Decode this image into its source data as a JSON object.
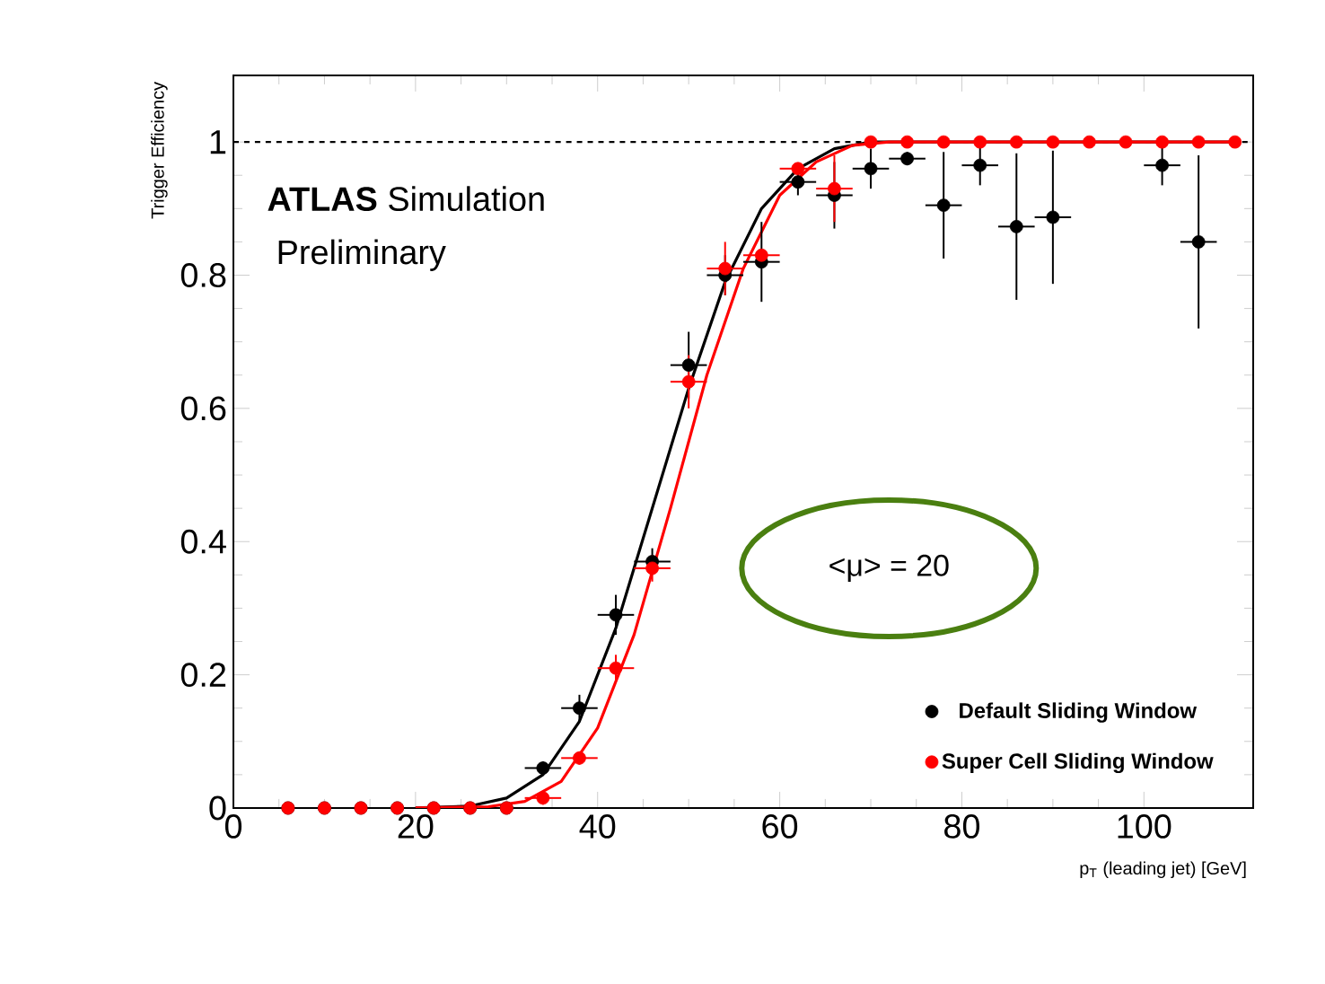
{
  "chart_data": {
    "type": "scatter",
    "xlabel": "p$_{T}$ (leading jet) [GeV]",
    "ylabel": "Trigger Efficiency",
    "annotations": [
      "**ATLAS** Simulation",
      "Preliminary",
      "<μ> = 20"
    ],
    "xlim": [
      0,
      112
    ],
    "ylim": [
      0,
      1.1
    ],
    "xticks": [
      0,
      20,
      40,
      60,
      80,
      100
    ],
    "yticks": [
      0,
      0.2,
      0.4,
      0.6,
      0.8,
      1
    ],
    "marker": "circle",
    "legend": "bottom right",
    "grid": false,
    "ref_lines": [
      {
        "axis": "y",
        "value": 1,
        "color": "#000000",
        "line_style": "dashed"
      }
    ],
    "series": [
      {
        "name": "Default Sliding Window",
        "color": "#000000",
        "x": [
          6,
          10,
          14,
          18,
          22,
          26,
          30,
          34,
          38,
          42,
          46,
          50,
          54,
          58,
          62,
          66,
          70,
          74,
          78,
          82,
          86,
          90,
          94,
          98,
          102,
          106
        ],
        "values": [
          0,
          0,
          0,
          0,
          0,
          0,
          0,
          0.06,
          0.15,
          0.29,
          0.37,
          0.665,
          0.8,
          0.82,
          0.94,
          0.92,
          0.96,
          0.975,
          0.905,
          0.965,
          0.873,
          0.887,
          null,
          null,
          0.965,
          0.85
        ],
        "errors": [
          null,
          null,
          null,
          null,
          null,
          null,
          null,
          0.01,
          0.02,
          0.03,
          0.02,
          0.05,
          0.03,
          0.06,
          0.02,
          0.05,
          0.03,
          0.01,
          0.08,
          0.03,
          0.11,
          0.1,
          null,
          null,
          0.03,
          0.13
        ],
        "xerrors": [
          null,
          null,
          null,
          null,
          null,
          null,
          null,
          2,
          2,
          2,
          2,
          2,
          2,
          2,
          2,
          2,
          2,
          2,
          2,
          2,
          2,
          2,
          null,
          null,
          2,
          2
        ]
      },
      {
        "name": "Super Cell Sliding Window",
        "color": "#ff0000",
        "x": [
          6,
          10,
          14,
          18,
          22,
          26,
          30,
          34,
          38,
          42,
          46,
          50,
          54,
          58,
          62,
          66,
          70,
          74,
          78,
          82,
          86,
          90,
          94,
          98,
          102,
          106,
          110
        ],
        "values": [
          0,
          0,
          0,
          0,
          0,
          0,
          0,
          0.015,
          0.075,
          0.21,
          0.36,
          0.64,
          0.81,
          0.83,
          0.96,
          0.93,
          1,
          1,
          1,
          1,
          1,
          1,
          1,
          1,
          1,
          1,
          1
        ],
        "errors": [
          null,
          null,
          null,
          null,
          null,
          null,
          null,
          0.01,
          0.01,
          0.02,
          0.02,
          0.04,
          0.04,
          null,
          null,
          0.05,
          null,
          null,
          null,
          null,
          null,
          null,
          null,
          null,
          null,
          null,
          null
        ],
        "xerrors": [
          null,
          null,
          null,
          null,
          null,
          null,
          null,
          2,
          2,
          2,
          2,
          2,
          2,
          2,
          2,
          2,
          null,
          null,
          null,
          null,
          null,
          null,
          null,
          null,
          null,
          null,
          null
        ]
      },
      {
        "type": "line",
        "color": "#000000",
        "marker": "none",
        "x": [
          20,
          26,
          30,
          34,
          38,
          42,
          46,
          50,
          54,
          58,
          62,
          66,
          70,
          110
        ],
        "values": [
          0,
          0.003,
          0.015,
          0.05,
          0.13,
          0.27,
          0.45,
          0.63,
          0.79,
          0.9,
          0.96,
          0.99,
          1,
          1
        ]
      },
      {
        "type": "line",
        "color": "#ff0000",
        "marker": "none",
        "x": [
          20,
          28,
          32,
          36,
          40,
          44,
          48,
          52,
          56,
          60,
          64,
          68,
          72,
          110
        ],
        "values": [
          0,
          0.002,
          0.01,
          0.04,
          0.12,
          0.26,
          0.45,
          0.65,
          0.81,
          0.92,
          0.97,
          0.995,
          1,
          1
        ]
      }
    ]
  }
}
